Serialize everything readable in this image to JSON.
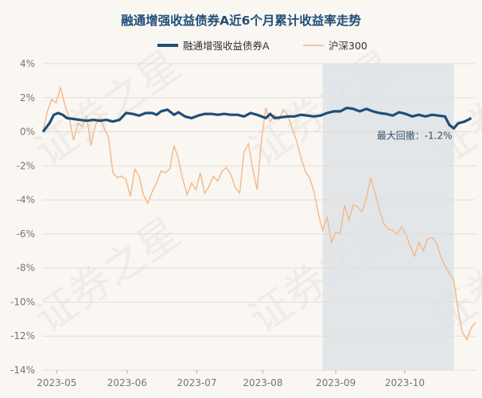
{
  "chart_data": {
    "type": "line",
    "title": "融通增强收益债券A近6个月累计收益率走势",
    "xlabel": "",
    "ylabel": "",
    "ylim": [
      -14,
      4
    ],
    "y_ticks": [
      "4%",
      "2%",
      "0%",
      "-2%",
      "-4%",
      "-6%",
      "-8%",
      "-10%",
      "-12%",
      "-14%"
    ],
    "y_tick_values": [
      4,
      2,
      0,
      -2,
      -4,
      -6,
      -8,
      -10,
      -12,
      -14
    ],
    "x_ticks": [
      "2023-05",
      "2023-06",
      "2023-07",
      "2023-08",
      "2023-09",
      "2023-10"
    ],
    "x_tick_positions": [
      6.3,
      38.5,
      70.4,
      100.6,
      134.0,
      165.6
    ],
    "x_range": [
      0,
      196
    ],
    "legend_position": "top",
    "grid": {
      "horizontal": true,
      "vertical": false
    },
    "annotation": {
      "text": "最大回撤：-1.2%",
      "x_start": 128,
      "x_end": 188,
      "y": -0.05
    },
    "series": [
      {
        "name": "融通增强收益债券A",
        "color": "#1f4e79",
        "values": [
          [
            0,
            0.0
          ],
          [
            3,
            0.5
          ],
          [
            5,
            1.0
          ],
          [
            7,
            1.1
          ],
          [
            9,
            1.0
          ],
          [
            11,
            0.8
          ],
          [
            14,
            0.75
          ],
          [
            17,
            0.7
          ],
          [
            20,
            0.65
          ],
          [
            23,
            0.7
          ],
          [
            26,
            0.65
          ],
          [
            29,
            0.7
          ],
          [
            32,
            0.6
          ],
          [
            35,
            0.7
          ],
          [
            38,
            1.1
          ],
          [
            41,
            1.05
          ],
          [
            44,
            0.95
          ],
          [
            47,
            1.1
          ],
          [
            50,
            1.1
          ],
          [
            52,
            1.0
          ],
          [
            54,
            1.2
          ],
          [
            57,
            1.3
          ],
          [
            60,
            1.0
          ],
          [
            62,
            1.15
          ],
          [
            65,
            0.9
          ],
          [
            68,
            0.8
          ],
          [
            71,
            0.95
          ],
          [
            74,
            1.05
          ],
          [
            77,
            1.05
          ],
          [
            80,
            1.0
          ],
          [
            83,
            1.05
          ],
          [
            86,
            1.0
          ],
          [
            89,
            1.0
          ],
          [
            92,
            0.9
          ],
          [
            95,
            1.1
          ],
          [
            98,
            1.0
          ],
          [
            100,
            0.9
          ],
          [
            102,
            0.8
          ],
          [
            104,
            1.05
          ],
          [
            106,
            0.8
          ],
          [
            109,
            0.85
          ],
          [
            112,
            0.9
          ],
          [
            115,
            0.9
          ],
          [
            118,
            1.0
          ],
          [
            121,
            0.95
          ],
          [
            124,
            0.9
          ],
          [
            127,
            0.95
          ],
          [
            130,
            1.1
          ],
          [
            133,
            1.2
          ],
          [
            136,
            1.2
          ],
          [
            139,
            1.4
          ],
          [
            142,
            1.35
          ],
          [
            145,
            1.2
          ],
          [
            148,
            1.35
          ],
          [
            151,
            1.2
          ],
          [
            154,
            1.1
          ],
          [
            157,
            1.05
          ],
          [
            160,
            0.95
          ],
          [
            163,
            1.15
          ],
          [
            166,
            1.05
          ],
          [
            169,
            0.9
          ],
          [
            172,
            1.0
          ],
          [
            175,
            0.9
          ],
          [
            178,
            1.0
          ],
          [
            181,
            0.95
          ],
          [
            184,
            0.9
          ],
          [
            186,
            0.4
          ],
          [
            188,
            0.2
          ],
          [
            190,
            0.5
          ],
          [
            193,
            0.6
          ],
          [
            196,
            0.8
          ]
        ]
      },
      {
        "name": "沪深300",
        "color": "#f2b88a",
        "values": [
          [
            0,
            0.0
          ],
          [
            2,
            1.2
          ],
          [
            4,
            1.9
          ],
          [
            6,
            1.7
          ],
          [
            8,
            2.6
          ],
          [
            10,
            1.6
          ],
          [
            12,
            0.8
          ],
          [
            14,
            -0.5
          ],
          [
            16,
            0.5
          ],
          [
            18,
            0.3
          ],
          [
            20,
            0.9
          ],
          [
            22,
            -0.8
          ],
          [
            24,
            0.4
          ],
          [
            26,
            0.8
          ],
          [
            28,
            0.2
          ],
          [
            30,
            -0.3
          ],
          [
            32,
            -2.4
          ],
          [
            34,
            -2.7
          ],
          [
            36,
            -2.6
          ],
          [
            38,
            -2.8
          ],
          [
            40,
            -3.8
          ],
          [
            42,
            -2.2
          ],
          [
            44,
            -2.6
          ],
          [
            46,
            -3.7
          ],
          [
            48,
            -4.2
          ],
          [
            50,
            -3.5
          ],
          [
            52,
            -3.0
          ],
          [
            54,
            -2.3
          ],
          [
            56,
            -2.4
          ],
          [
            58,
            -2.2
          ],
          [
            60,
            -0.8
          ],
          [
            62,
            -1.6
          ],
          [
            64,
            -2.8
          ],
          [
            66,
            -3.7
          ],
          [
            68,
            -3.0
          ],
          [
            70,
            -3.4
          ],
          [
            72,
            -2.4
          ],
          [
            74,
            -3.6
          ],
          [
            76,
            -3.2
          ],
          [
            78,
            -2.6
          ],
          [
            80,
            -2.9
          ],
          [
            82,
            -2.3
          ],
          [
            84,
            -2.1
          ],
          [
            86,
            -2.5
          ],
          [
            88,
            -3.3
          ],
          [
            90,
            -3.6
          ],
          [
            92,
            -1.2
          ],
          [
            94,
            -0.7
          ],
          [
            96,
            -2.2
          ],
          [
            98,
            -3.4
          ],
          [
            100,
            -0.5
          ],
          [
            102,
            1.4
          ],
          [
            104,
            0.6
          ],
          [
            106,
            1.0
          ],
          [
            108,
            0.7
          ],
          [
            110,
            1.3
          ],
          [
            112,
            1.0
          ],
          [
            114,
            0.2
          ],
          [
            116,
            -0.5
          ],
          [
            118,
            -1.5
          ],
          [
            120,
            -2.3
          ],
          [
            122,
            -2.7
          ],
          [
            124,
            -3.5
          ],
          [
            126,
            -4.8
          ],
          [
            128,
            -5.8
          ],
          [
            130,
            -5.0
          ],
          [
            132,
            -6.5
          ],
          [
            134,
            -5.9
          ],
          [
            136,
            -6.0
          ],
          [
            138,
            -4.3
          ],
          [
            140,
            -5.2
          ],
          [
            142,
            -4.3
          ],
          [
            144,
            -4.4
          ],
          [
            146,
            -4.7
          ],
          [
            148,
            -3.9
          ],
          [
            150,
            -2.7
          ],
          [
            152,
            -3.6
          ],
          [
            154,
            -4.6
          ],
          [
            156,
            -5.4
          ],
          [
            158,
            -5.7
          ],
          [
            160,
            -5.8
          ],
          [
            162,
            -6.0
          ],
          [
            164,
            -5.6
          ],
          [
            166,
            -6.0
          ],
          [
            168,
            -6.7
          ],
          [
            170,
            -7.3
          ],
          [
            172,
            -6.5
          ],
          [
            174,
            -7.0
          ],
          [
            176,
            -6.3
          ],
          [
            178,
            -6.2
          ],
          [
            180,
            -6.5
          ],
          [
            182,
            -7.3
          ],
          [
            184,
            -7.9
          ],
          [
            186,
            -8.3
          ],
          [
            188,
            -8.7
          ],
          [
            190,
            -10.5
          ],
          [
            192,
            -11.8
          ],
          [
            194,
            -12.2
          ],
          [
            196,
            -11.5
          ],
          [
            198,
            -11.2
          ]
        ]
      }
    ]
  },
  "watermark": "证券之星",
  "colors": {
    "background": "#faf6f1",
    "title": "#1f4e79",
    "grid": "#e2ddd6",
    "axis_text": "#777777",
    "shade": "#dde3e8",
    "annotation_text": "#3a5068"
  }
}
